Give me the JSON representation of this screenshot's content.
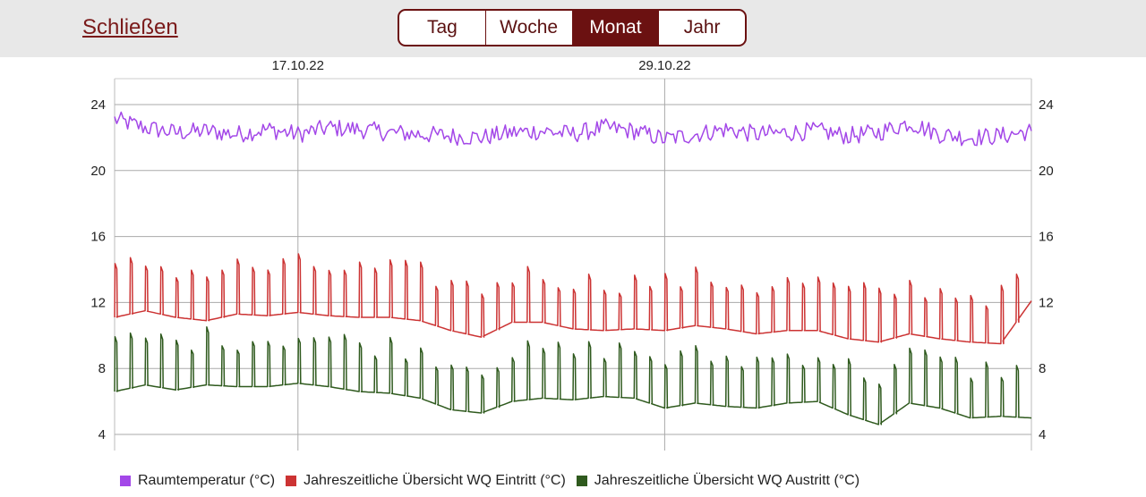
{
  "header": {
    "close_label": "Schließen",
    "tabs": [
      {
        "label": "Tag",
        "active": false
      },
      {
        "label": "Woche",
        "active": false
      },
      {
        "label": "Monat",
        "active": true
      },
      {
        "label": "Jahr",
        "active": false
      }
    ],
    "accent_color": "#6b1111"
  },
  "chart_data": {
    "type": "line",
    "title": "",
    "xlabel": "",
    "ylabel": "",
    "ylim": [
      4,
      24
    ],
    "yticks": [
      4,
      8,
      12,
      16,
      20,
      24
    ],
    "xlim": [
      "2022-10-11",
      "2022-11-10"
    ],
    "date_labels": [
      {
        "date": "2022-10-17",
        "label": "17.10.22"
      },
      {
        "date": "2022-10-29",
        "label": "29.10.22"
      }
    ],
    "grid": true,
    "legend_position": "bottom",
    "series": [
      {
        "name": "Raumtemperatur (°C)",
        "color": "#a347e8",
        "style": "noisy",
        "x": [
          "2022-10-11",
          "2022-10-12",
          "2022-10-13",
          "2022-10-14",
          "2022-10-15",
          "2022-10-16",
          "2022-10-17",
          "2022-10-18",
          "2022-10-19",
          "2022-10-20",
          "2022-10-21",
          "2022-10-22",
          "2022-10-23",
          "2022-10-24",
          "2022-10-25",
          "2022-10-26",
          "2022-10-27",
          "2022-10-28",
          "2022-10-29",
          "2022-10-30",
          "2022-10-31",
          "2022-11-01",
          "2022-11-02",
          "2022-11-03",
          "2022-11-04",
          "2022-11-05",
          "2022-11-06",
          "2022-11-07",
          "2022-11-08",
          "2022-11-09",
          "2022-11-10"
        ],
        "values": [
          23.1,
          22.6,
          22.3,
          22.4,
          22.2,
          22.5,
          22.2,
          22.6,
          22.5,
          22.3,
          22.2,
          22.1,
          22.0,
          22.3,
          22.4,
          22.2,
          22.6,
          22.4,
          21.9,
          22.2,
          22.5,
          22.2,
          22.3,
          22.4,
          22.1,
          22.3,
          22.9,
          22.2,
          22.0,
          22.1,
          22.4
        ]
      },
      {
        "name": "Jahreszeitliche Übersicht WQ Eintritt (°C)",
        "color": "#cc3333",
        "style": "spiky",
        "x": [
          "2022-10-11",
          "2022-10-12",
          "2022-10-13",
          "2022-10-14",
          "2022-10-15",
          "2022-10-16",
          "2022-10-17",
          "2022-10-18",
          "2022-10-19",
          "2022-10-20",
          "2022-10-21",
          "2022-10-22",
          "2022-10-23",
          "2022-10-24",
          "2022-10-25",
          "2022-10-26",
          "2022-10-27",
          "2022-10-28",
          "2022-10-29",
          "2022-10-30",
          "2022-10-31",
          "2022-11-01",
          "2022-11-02",
          "2022-11-03",
          "2022-11-04",
          "2022-11-05",
          "2022-11-06",
          "2022-11-07",
          "2022-11-08",
          "2022-11-09",
          "2022-11-10"
        ],
        "values": [
          11.1,
          11.5,
          11.1,
          10.9,
          11.3,
          11.2,
          11.4,
          11.2,
          11.1,
          11.1,
          10.9,
          10.3,
          9.9,
          10.8,
          10.8,
          10.4,
          10.3,
          10.4,
          10.3,
          10.6,
          10.4,
          10.1,
          10.3,
          10.3,
          9.8,
          9.6,
          10.1,
          9.8,
          9.6,
          9.5,
          12.1
        ]
      },
      {
        "name": "Jahreszeitliche Übersicht WQ Austritt (°C)",
        "color": "#2f5a1e",
        "style": "spiky",
        "x": [
          "2022-10-11",
          "2022-10-12",
          "2022-10-13",
          "2022-10-14",
          "2022-10-15",
          "2022-10-16",
          "2022-10-17",
          "2022-10-18",
          "2022-10-19",
          "2022-10-20",
          "2022-10-21",
          "2022-10-22",
          "2022-10-23",
          "2022-10-24",
          "2022-10-25",
          "2022-10-26",
          "2022-10-27",
          "2022-10-28",
          "2022-10-29",
          "2022-10-30",
          "2022-10-31",
          "2022-11-01",
          "2022-11-02",
          "2022-11-03",
          "2022-11-04",
          "2022-11-05",
          "2022-11-06",
          "2022-11-07",
          "2022-11-08",
          "2022-11-09",
          "2022-11-10"
        ],
        "values": [
          6.6,
          7.0,
          6.7,
          7.0,
          6.9,
          6.9,
          7.1,
          6.9,
          6.6,
          6.5,
          6.2,
          5.5,
          5.3,
          6.0,
          6.2,
          6.1,
          6.3,
          6.2,
          5.6,
          5.9,
          5.7,
          5.6,
          5.9,
          6.0,
          5.2,
          4.6,
          5.9,
          5.6,
          5.0,
          5.1,
          5.0
        ]
      }
    ]
  }
}
